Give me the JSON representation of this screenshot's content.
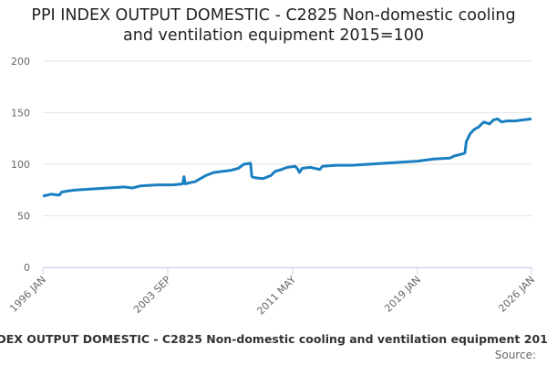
{
  "chart_data": {
    "type": "line",
    "title": "PPI INDEX OUTPUT DOMESTIC - C2825 Non-domestic cooling and ventilation equipment 2015=100",
    "source": "Source:",
    "x": [
      "1996 JAN",
      "1996 JUL",
      "1997 JAN",
      "1997 MAR",
      "1997 JUL",
      "1998 JAN",
      "1999 JAN",
      "2000 JAN",
      "2001 JAN",
      "2001 JUL",
      "2002 JAN",
      "2003 JAN",
      "2004 JAN",
      "2004 AUG",
      "2004 SEP",
      "2004 OCT",
      "2005 JAN",
      "2005 MAY",
      "2005 SEP",
      "2006 JAN",
      "2006 JUL",
      "2007 JAN",
      "2007 JUL",
      "2008 JAN",
      "2008 MAY",
      "2008 OCT",
      "2008 NOV",
      "2009 JAN",
      "2009 JUL",
      "2010 JAN",
      "2010 APR",
      "2010 SEP",
      "2011 JAN",
      "2011 JUL",
      "2011 SEP",
      "2011 OCT",
      "2011 DEC",
      "2012 JUN",
      "2013 JAN",
      "2013 MAR",
      "2014 JAN",
      "2015 JAN",
      "2016 JAN",
      "2017 JAN",
      "2018 JAN",
      "2019 JAN",
      "2020 JAN",
      "2021 JAN",
      "2021 APR",
      "2021 OCT",
      "2021 DEC",
      "2022 JAN",
      "2022 APR",
      "2022 JUL",
      "2022 OCT",
      "2023 JAN",
      "2023 FEB",
      "2023 JUN",
      "2023 SEP",
      "2023 DEC",
      "2024 MAR",
      "2024 JUL",
      "2025 JAN",
      "2025 JUL",
      "2026 JAN"
    ],
    "series": [
      {
        "name": "PPI INDEX OUTPUT DOMESTIC - C2825 Non-domestic cooling and ventilation equipment 2015=100",
        "color": "#1a7fc1",
        "values": [
          69,
          71,
          70,
          73,
          74,
          75,
          76,
          77,
          78,
          77,
          79,
          80,
          80,
          81,
          88,
          81,
          82,
          83,
          86,
          89,
          92,
          93,
          94,
          96,
          100,
          101,
          88,
          87,
          86,
          89,
          93,
          95,
          97,
          98,
          95,
          92,
          96,
          97,
          95,
          98,
          99,
          99,
          100,
          101,
          102,
          103,
          105,
          106,
          108,
          110,
          111,
          122,
          130,
          134,
          136,
          140,
          141,
          139,
          143,
          144,
          141,
          142,
          142,
          143,
          144
        ]
      }
    ],
    "xticks": [
      "1996 JAN",
      "2003 SEP",
      "2011 MAY",
      "2019 JAN",
      "2026 JAN"
    ],
    "ylim": [
      0,
      200
    ],
    "yticks": [
      0,
      50,
      100,
      150,
      200
    ],
    "grid": true
  }
}
